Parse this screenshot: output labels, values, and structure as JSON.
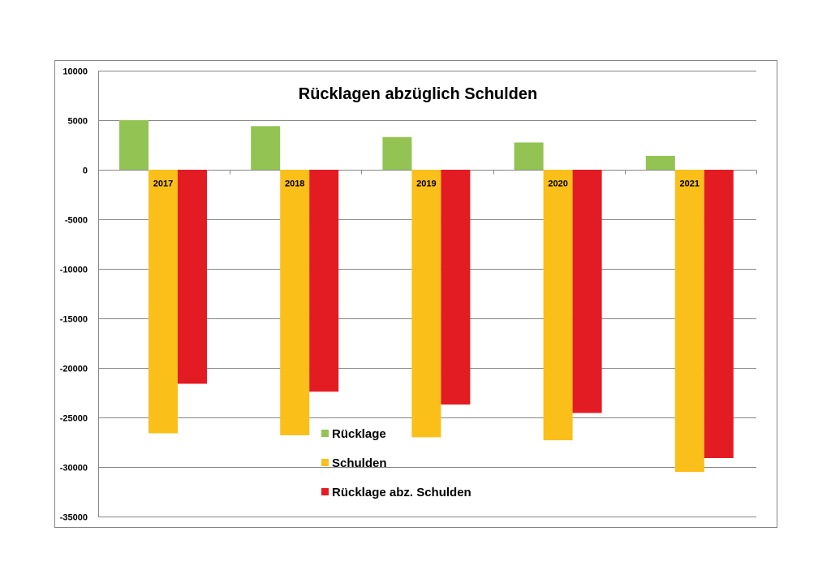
{
  "chart_data": {
    "type": "bar",
    "title": "Rücklagen abzüglich Schulden",
    "xlabel": "",
    "ylabel": "",
    "categories": [
      "2017",
      "2018",
      "2019",
      "2020",
      "2021"
    ],
    "series": [
      {
        "name": "Rücklage",
        "color": "#92c353",
        "values": [
          5000,
          4400,
          3300,
          2750,
          1400
        ]
      },
      {
        "name": "Schulden",
        "color": "#fbbf1a",
        "values": [
          -26600,
          -26800,
          -27000,
          -27300,
          -30500
        ]
      },
      {
        "name": "Rücklage abz. Schulden",
        "color": "#e31c24",
        "values": [
          -21600,
          -22400,
          -23700,
          -24550,
          -29100
        ]
      }
    ],
    "ylim": [
      -35000,
      10000
    ],
    "yticks": [
      10000,
      5000,
      0,
      -5000,
      -10000,
      -15000,
      -20000,
      -25000,
      -30000,
      -35000
    ],
    "grid": true,
    "legend_position": "center-bottom"
  }
}
